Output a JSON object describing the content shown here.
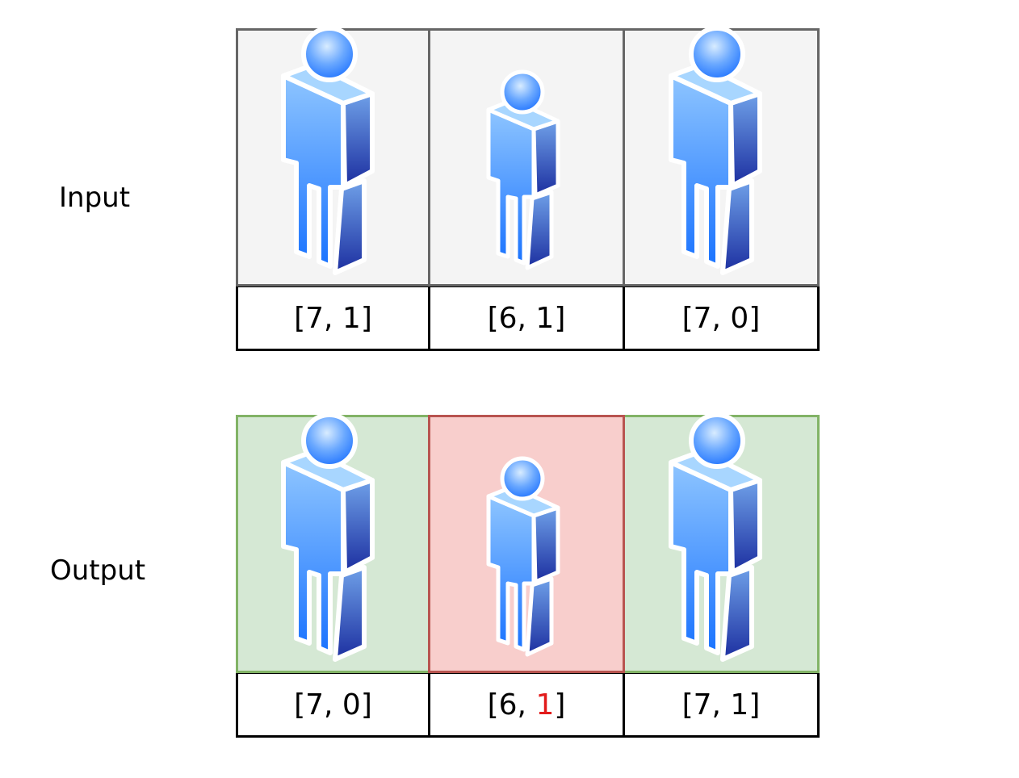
{
  "labels": {
    "input": "Input",
    "output": "Output"
  },
  "colors": {
    "input_bg": "#f4f4f4",
    "input_border": "#666666",
    "ok_bg": "#d5e8d4",
    "ok_border": "#82b366",
    "bad_bg": "#f8cecc",
    "bad_border": "#b85450",
    "highlight_text": "#e21b1b"
  },
  "input": [
    {
      "pair": "[7, 1]",
      "h": "7",
      "k": "1",
      "size": "tall"
    },
    {
      "pair": "[6, 1]",
      "h": "6",
      "k": "1",
      "size": "short"
    },
    {
      "pair": "[7, 0]",
      "h": "7",
      "k": "0",
      "size": "tall"
    }
  ],
  "output": [
    {
      "pair": "[7, 0]",
      "h": "7",
      "k": "0",
      "size": "tall",
      "status": "ok"
    },
    {
      "pair_prefix": "[6, ",
      "pair_highlight": "1",
      "pair_suffix": "]",
      "h": "6",
      "k": "1",
      "size": "short",
      "status": "bad"
    },
    {
      "pair": "[7, 1]",
      "h": "7",
      "k": "1",
      "size": "tall",
      "status": "ok"
    }
  ],
  "icon": "person-icon"
}
